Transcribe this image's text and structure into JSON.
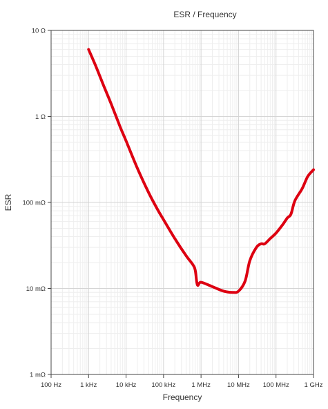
{
  "chart_data": {
    "type": "line",
    "title": "ESR / Frequency",
    "xlabel": "Frequency",
    "ylabel": "ESR",
    "x_scale": "log",
    "y_scale": "log",
    "xlim": [
      100,
      1000000000
    ],
    "ylim": [
      0.001,
      10
    ],
    "grid": true,
    "x_ticks": [
      {
        "value": 100,
        "label": "100 Hz"
      },
      {
        "value": 1000,
        "label": "1 kHz"
      },
      {
        "value": 10000,
        "label": "10 kHz"
      },
      {
        "value": 100000,
        "label": "100 kHz"
      },
      {
        "value": 1000000,
        "label": "1 MHz"
      },
      {
        "value": 10000000,
        "label": "10 MHz"
      },
      {
        "value": 100000000,
        "label": "100 MHz"
      },
      {
        "value": 1000000000,
        "label": "1 GHz"
      }
    ],
    "y_ticks": [
      {
        "value": 10,
        "label": "10 Ω"
      },
      {
        "value": 1,
        "label": "1 Ω"
      },
      {
        "value": 0.1,
        "label": "100 mΩ"
      },
      {
        "value": 0.01,
        "label": "10 mΩ"
      },
      {
        "value": 0.001,
        "label": "1 mΩ"
      }
    ],
    "series": [
      {
        "color": "#dd0011",
        "points": [
          [
            1000,
            6.0
          ],
          [
            1500,
            4.0
          ],
          [
            2500,
            2.3
          ],
          [
            4000,
            1.4
          ],
          [
            7000,
            0.75
          ],
          [
            10000,
            0.52
          ],
          [
            20000,
            0.25
          ],
          [
            40000,
            0.13
          ],
          [
            70000,
            0.082
          ],
          [
            100000,
            0.063
          ],
          [
            200000,
            0.038
          ],
          [
            400000,
            0.024
          ],
          [
            600000,
            0.019
          ],
          [
            700000,
            0.0163
          ],
          [
            800000,
            0.011
          ],
          [
            1000000,
            0.0118
          ],
          [
            2000000,
            0.0105
          ],
          [
            4000000,
            0.0093
          ],
          [
            7000000,
            0.009
          ],
          [
            10000000,
            0.0093
          ],
          [
            15000000,
            0.0122
          ],
          [
            20000000,
            0.021
          ],
          [
            30000000,
            0.03
          ],
          [
            40000000,
            0.033
          ],
          [
            50000000,
            0.033
          ],
          [
            70000000,
            0.038
          ],
          [
            100000000,
            0.044
          ],
          [
            150000000,
            0.055
          ],
          [
            200000000,
            0.066
          ],
          [
            250000000,
            0.073
          ],
          [
            320000000,
            0.105
          ],
          [
            500000000,
            0.145
          ],
          [
            700000000,
            0.2
          ],
          [
            1000000000,
            0.24
          ]
        ]
      }
    ]
  }
}
